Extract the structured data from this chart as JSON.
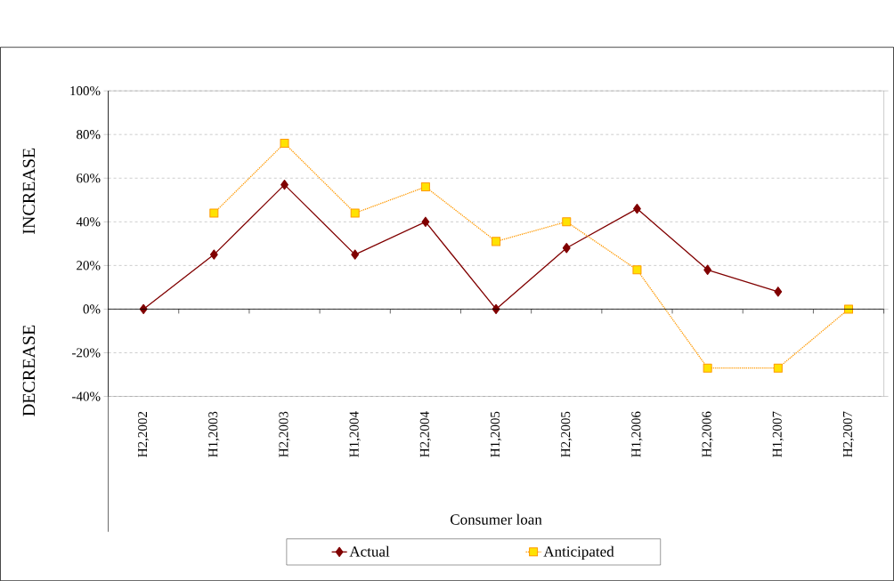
{
  "chart_data": {
    "type": "line",
    "ylabel": "INCREASE",
    "xlabel": "Consumer loan",
    "annotations": [
      "DECREASE"
    ],
    "categories": [
      "H2,2002",
      "H1,2003",
      "H2,2003",
      "H1,2004",
      "H2,2004",
      "H1,2005",
      "H2,2005",
      "H1,2006",
      "H2,2006",
      "H1,2007",
      "H2,2007"
    ],
    "series": [
      {
        "name": "Actual",
        "color": "#800000",
        "marker": "diamond",
        "line_style": "solid",
        "values": [
          0,
          25,
          57,
          25,
          40,
          0,
          28,
          46,
          18,
          8,
          null
        ]
      },
      {
        "name": "Anticipated",
        "color": "#ff9900",
        "marker": "square",
        "line_style": "dotted",
        "values": [
          null,
          44,
          76,
          44,
          56,
          31,
          40,
          18,
          -27,
          -27,
          0
        ]
      }
    ],
    "ylim": [
      -40,
      100
    ],
    "yticks": [
      {
        "value": -40,
        "label": "-40%"
      },
      {
        "value": -20,
        "label": "-20%"
      },
      {
        "value": 0,
        "label": "0%"
      },
      {
        "value": 20,
        "label": "20%"
      },
      {
        "value": 40,
        "label": "40%"
      },
      {
        "value": 60,
        "label": "60%"
      },
      {
        "value": 80,
        "label": "80%"
      },
      {
        "value": 100,
        "label": "100%"
      }
    ],
    "grid": "y",
    "legend": "bottom"
  }
}
